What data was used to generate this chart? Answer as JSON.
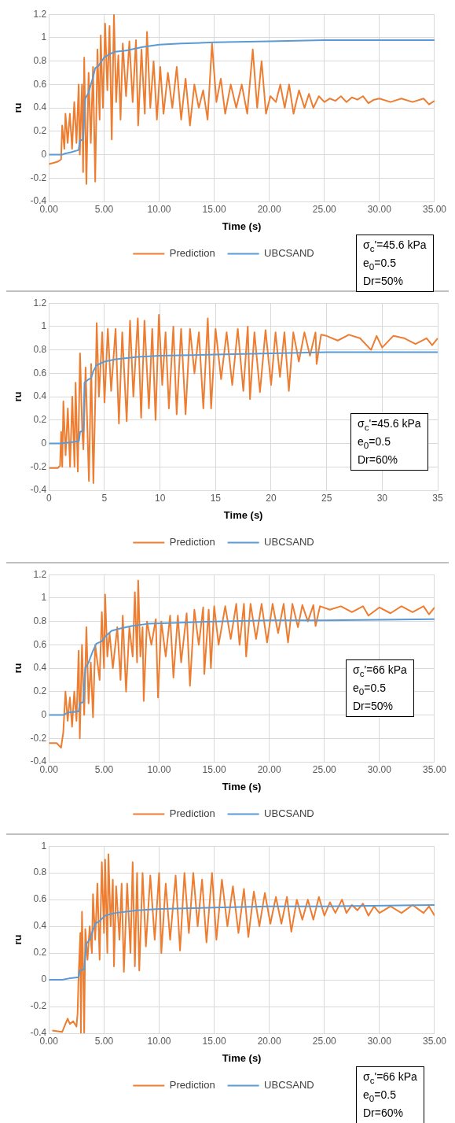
{
  "chart_data": [
    {
      "type": "line",
      "xlabel": "Time (s)",
      "ylabel": "ru",
      "xlim": [
        0,
        35
      ],
      "ylim": [
        -0.4,
        1.2
      ],
      "xticks": [
        {
          "value": 0,
          "label": "0.00"
        },
        {
          "value": 5,
          "label": "5.00"
        },
        {
          "value": 10,
          "label": "10.00"
        },
        {
          "value": 15,
          "label": "15.00"
        },
        {
          "value": 20,
          "label": "20.00"
        },
        {
          "value": 25,
          "label": "25.00"
        },
        {
          "value": 30,
          "label": "30.00"
        },
        {
          "value": 35,
          "label": "35.00"
        }
      ],
      "yticks": [
        -0.4,
        -0.2,
        0,
        0.2,
        0.4,
        0.6,
        0.8,
        1,
        1.2
      ],
      "grid": true,
      "legend": "bottom",
      "line_style": "solid",
      "annotations": [
        "σ$_{c}$'=45.6 kPa",
        "e$_{0}$=0.5",
        "Dr=50%"
      ],
      "series": [
        {
          "name": "Prediction",
          "color": "#ed7d31",
          "x": [
            0,
            0.8,
            1.1,
            1.2,
            1.4,
            1.5,
            1.7,
            1.9,
            2.1,
            2.3,
            2.5,
            2.7,
            2.8,
            3.0,
            3.1,
            3.2,
            3.4,
            3.6,
            3.8,
            4.0,
            4.2,
            4.4,
            4.6,
            4.7,
            4.9,
            5.1,
            5.3,
            5.5,
            5.7,
            5.9,
            6.1,
            6.3,
            6.5,
            6.7,
            7.0,
            7.3,
            7.6,
            7.9,
            8.1,
            8.4,
            8.7,
            8.9,
            9.2,
            9.5,
            9.8,
            10.1,
            10.4,
            10.8,
            11.2,
            11.6,
            12,
            12.4,
            12.8,
            13.2,
            13.6,
            14,
            14.4,
            14.8,
            15.2,
            15.6,
            16,
            16.5,
            17,
            17.5,
            18,
            18.5,
            18.9,
            19.3,
            19.7,
            20.1,
            20.6,
            21,
            21.4,
            21.8,
            22.2,
            22.7,
            23.2,
            23.6,
            24,
            24.5,
            25,
            25.5,
            26,
            26.5,
            27,
            27.5,
            28,
            28.5,
            29,
            29.5,
            30,
            31,
            32,
            33,
            34,
            34.5,
            35
          ],
          "values": [
            -0.08,
            -0.06,
            -0.04,
            0.25,
            0.05,
            0.35,
            0.1,
            0.35,
            0.05,
            0.45,
            0.1,
            0.6,
            0.0,
            0.6,
            -0.15,
            0.83,
            -0.25,
            0.7,
            0.1,
            0.75,
            -0.23,
            0.9,
            0.3,
            1.02,
            0.4,
            1.12,
            0.55,
            1.1,
            0.13,
            1.2,
            0.45,
            0.85,
            0.3,
            0.95,
            0.5,
            0.97,
            0.45,
            0.98,
            0.25,
            0.9,
            0.35,
            1.05,
            0.4,
            0.8,
            0.3,
            0.75,
            0.35,
            0.7,
            0.4,
            0.75,
            0.3,
            0.65,
            0.25,
            0.6,
            0.4,
            0.55,
            0.3,
            0.95,
            0.45,
            0.65,
            0.35,
            0.6,
            0.4,
            0.6,
            0.35,
            0.9,
            0.4,
            0.8,
            0.35,
            0.5,
            0.45,
            0.6,
            0.4,
            0.6,
            0.35,
            0.55,
            0.4,
            0.52,
            0.4,
            0.5,
            0.45,
            0.48,
            0.46,
            0.5,
            0.45,
            0.49,
            0.47,
            0.5,
            0.44,
            0.47,
            0.48,
            0.45,
            0.48,
            0.45,
            0.48,
            0.43,
            0.46
          ]
        },
        {
          "name": "UBCSAND",
          "color": "#5b9bd5",
          "x": [
            0,
            1.2,
            1.5,
            2,
            2.7,
            2.8,
            3.1,
            3.3,
            3.6,
            3.8,
            4,
            4.2,
            4.5,
            5,
            5.5,
            6,
            7,
            8,
            8.5,
            10,
            12,
            15,
            20,
            25,
            35
          ],
          "values": [
            0,
            0,
            0.01,
            0.02,
            0.04,
            0.12,
            0.13,
            0.48,
            0.53,
            0.6,
            0.66,
            0.74,
            0.76,
            0.83,
            0.86,
            0.88,
            0.89,
            0.91,
            0.92,
            0.94,
            0.95,
            0.96,
            0.97,
            0.98,
            0.98
          ]
        }
      ]
    },
    {
      "type": "line",
      "xlabel": "Time (s)",
      "ylabel": "ru",
      "xlim": [
        0,
        35
      ],
      "ylim": [
        -0.4,
        1.2
      ],
      "xticks": [
        0,
        5,
        10,
        15,
        20,
        25,
        30,
        35
      ],
      "yticks": [
        -0.4,
        -0.2,
        0,
        0.2,
        0.4,
        0.6,
        0.8,
        1,
        1.2
      ],
      "grid": true,
      "legend": "bottom",
      "line_style": "solid",
      "annotations": [
        "σ$_{c}$'=45.6 kPa",
        "e$_{0}$=0.5",
        "Dr=60%"
      ],
      "series": [
        {
          "name": "Prediction",
          "color": "#ed7d31",
          "x": [
            0,
            0.8,
            1.0,
            1.1,
            1.2,
            1.3,
            1.5,
            1.7,
            1.9,
            2.1,
            2.3,
            2.4,
            2.6,
            2.8,
            3.0,
            3.1,
            3.3,
            3.6,
            3.8,
            4.0,
            4.2,
            4.3,
            4.5,
            4.8,
            5.0,
            5.3,
            5.6,
            6.0,
            6.3,
            6.6,
            7.0,
            7.3,
            7.6,
            8.0,
            8.3,
            8.6,
            9.0,
            9.3,
            9.6,
            9.9,
            10.2,
            10.5,
            10.8,
            11.2,
            11.5,
            11.9,
            12.3,
            12.7,
            13.1,
            13.5,
            13.9,
            14.3,
            14.6,
            15,
            15.5,
            16,
            16.5,
            17,
            17.5,
            17.9,
            18.1,
            18.5,
            19,
            19.5,
            20,
            20.4,
            20.8,
            21.2,
            21.6,
            22,
            22.5,
            23,
            23.5,
            24,
            24.1,
            24.5,
            25,
            26,
            27,
            28,
            29,
            29.5,
            30,
            31,
            32,
            33,
            34,
            34.5,
            35
          ],
          "values": [
            -0.21,
            -0.21,
            -0.19,
            0.1,
            -0.2,
            0.36,
            -0.1,
            0.3,
            -0.2,
            0.4,
            -0.2,
            0.52,
            -0.24,
            0.77,
            0.1,
            -0.05,
            0.65,
            -0.32,
            0.68,
            -0.34,
            0.5,
            1.03,
            0.4,
            0.95,
            0.35,
            0.98,
            0.45,
            0.98,
            0.17,
            0.95,
            0.19,
            1.05,
            0.4,
            1.07,
            0.22,
            1.05,
            0.3,
            0.98,
            0.2,
            1.1,
            0.5,
            0.95,
            0.3,
            1.0,
            0.25,
            0.98,
            0.25,
            0.98,
            0.6,
            0.95,
            0.3,
            1.07,
            0.3,
            0.98,
            0.55,
            0.95,
            0.5,
            0.98,
            0.45,
            1.0,
            0.38,
            0.95,
            0.44,
            0.97,
            0.5,
            0.95,
            0.57,
            0.95,
            0.45,
            0.95,
            0.7,
            0.95,
            0.75,
            0.95,
            0.68,
            0.93,
            0.92,
            0.88,
            0.93,
            0.9,
            0.8,
            0.92,
            0.82,
            0.92,
            0.9,
            0.85,
            0.9,
            0.84,
            0.9
          ]
        },
        {
          "name": "UBCSAND",
          "color": "#5b9bd5",
          "x": [
            0,
            1,
            2,
            2.7,
            2.8,
            3.1,
            3.2,
            3.6,
            3.8,
            4.0,
            4.3,
            5,
            6,
            7,
            8,
            10,
            15,
            20,
            25,
            35
          ],
          "values": [
            0,
            0,
            0.01,
            0.02,
            0.1,
            0.11,
            0.52,
            0.55,
            0.56,
            0.62,
            0.67,
            0.7,
            0.72,
            0.73,
            0.74,
            0.75,
            0.76,
            0.77,
            0.78,
            0.78
          ]
        }
      ]
    },
    {
      "type": "line",
      "xlabel": "Time (s)",
      "ylabel": "ru",
      "xlim": [
        0,
        35
      ],
      "ylim": [
        -0.4,
        1.2
      ],
      "xticks": [
        {
          "value": 0,
          "label": "0.00"
        },
        {
          "value": 5,
          "label": "5.00"
        },
        {
          "value": 10,
          "label": "10.00"
        },
        {
          "value": 15,
          "label": "15.00"
        },
        {
          "value": 20,
          "label": "20.00"
        },
        {
          "value": 25,
          "label": "25.00"
        },
        {
          "value": 30,
          "label": "30.00"
        },
        {
          "value": 35,
          "label": "35.00"
        }
      ],
      "yticks": [
        -0.4,
        -0.2,
        0,
        0.2,
        0.4,
        0.6,
        0.8,
        1,
        1.2
      ],
      "grid": true,
      "legend": "bottom",
      "line_style": "solid",
      "annotations": [
        "σ$_{c}$'=66 kPa",
        "e$_{0}$=0.5",
        "Dr=50%"
      ],
      "series": [
        {
          "name": "Prediction",
          "color": "#ed7d31",
          "x": [
            0,
            0.7,
            1.1,
            1.3,
            1.5,
            1.7,
            1.9,
            2.1,
            2.3,
            2.5,
            2.7,
            2.8,
            3.0,
            3.2,
            3.4,
            3.6,
            3.8,
            4.0,
            4.2,
            4.6,
            4.8,
            5.0,
            5.1,
            5.3,
            5.5,
            5.8,
            6.2,
            6.5,
            6.7,
            7.0,
            7.3,
            7.6,
            7.8,
            8.0,
            8.1,
            8.3,
            8.5,
            8.6,
            8.9,
            9.3,
            9.7,
            9.9,
            10.2,
            10.6,
            11,
            11.3,
            11.7,
            12.0,
            12.5,
            12.8,
            13.2,
            13.6,
            14.0,
            14.1,
            14.5,
            14.7,
            15,
            15.4,
            16,
            16.5,
            17,
            17.3,
            17.7,
            17.9,
            18.3,
            18.8,
            19.3,
            19.8,
            20.3,
            20.8,
            21.3,
            21.7,
            22.1,
            22.6,
            23,
            23.5,
            24,
            24.2,
            24.6,
            25.5,
            26.5,
            27.5,
            28.5,
            29,
            30,
            31,
            32,
            33,
            34,
            34.5,
            35
          ],
          "values": [
            -0.24,
            -0.24,
            -0.28,
            -0.15,
            0.2,
            -0.05,
            0.15,
            -0.1,
            0.2,
            -0.05,
            0.55,
            -0.2,
            0.6,
            0.0,
            0.75,
            0.1,
            0.45,
            -0.02,
            0.6,
            0.3,
            0.88,
            0.4,
            1.03,
            0.5,
            0.7,
            0.4,
            0.75,
            0.3,
            0.85,
            0.2,
            0.75,
            0.5,
            1.05,
            0.45,
            1.15,
            0.5,
            0.75,
            0.12,
            0.8,
            0.6,
            0.82,
            0.15,
            0.8,
            0.5,
            0.85,
            0.32,
            0.85,
            0.45,
            0.87,
            0.25,
            0.9,
            0.6,
            0.92,
            0.35,
            0.9,
            0.4,
            0.93,
            0.6,
            0.93,
            0.65,
            0.95,
            0.6,
            0.95,
            0.5,
            0.95,
            0.65,
            0.95,
            0.62,
            0.95,
            0.7,
            0.95,
            0.62,
            0.95,
            0.75,
            0.94,
            0.8,
            0.94,
            0.76,
            0.93,
            0.9,
            0.93,
            0.88,
            0.93,
            0.85,
            0.92,
            0.87,
            0.93,
            0.88,
            0.93,
            0.86,
            0.92
          ]
        },
        {
          "name": "UBCSAND",
          "color": "#5b9bd5",
          "x": [
            0,
            1.3,
            1.7,
            2.7,
            2.8,
            3.1,
            3.3,
            3.6,
            3.8,
            4.0,
            4.3,
            4.8,
            5.2,
            5.7,
            6.5,
            7.5,
            9,
            12,
            15,
            20,
            25,
            35
          ],
          "values": [
            0,
            0,
            0.02,
            0.03,
            0.1,
            0.11,
            0.4,
            0.45,
            0.5,
            0.55,
            0.61,
            0.63,
            0.68,
            0.72,
            0.74,
            0.76,
            0.78,
            0.79,
            0.8,
            0.81,
            0.81,
            0.82
          ]
        }
      ]
    },
    {
      "type": "line",
      "xlabel": "Time (s)",
      "ylabel": "ru",
      "xlim": [
        0,
        35
      ],
      "ylim": [
        -0.4,
        1
      ],
      "xticks": [
        {
          "value": 0,
          "label": "0.00"
        },
        {
          "value": 5,
          "label": "5.00"
        },
        {
          "value": 10,
          "label": "10.00"
        },
        {
          "value": 15,
          "label": "15.00"
        },
        {
          "value": 20,
          "label": "20.00"
        },
        {
          "value": 25,
          "label": "25.00"
        },
        {
          "value": 30,
          "label": "30.00"
        },
        {
          "value": 35,
          "label": "35.00"
        }
      ],
      "yticks": [
        -0.4,
        -0.2,
        0,
        0.2,
        0.4,
        0.6,
        0.8,
        1
      ],
      "grid": true,
      "legend": "bottom",
      "line_style": "solid",
      "annotations": [
        "σ$_{c}$'=66 kPa",
        "e$_{0}$=0.5",
        "Dr=60%"
      ],
      "series": [
        {
          "name": "Prediction",
          "color": "#ed7d31",
          "x": [
            0.3,
            1.2,
            1.5,
            1.7,
            1.9,
            2.2,
            2.5,
            2.6,
            2.7,
            2.85,
            2.9,
            3.0,
            3.1,
            3.2,
            3.3,
            3.5,
            3.7,
            3.9,
            4.0,
            4.2,
            4.4,
            4.6,
            4.8,
            5.0,
            5.1,
            5.3,
            5.4,
            5.6,
            5.8,
            5.9,
            6.1,
            6.4,
            6.6,
            6.8,
            7.1,
            7.4,
            7.6,
            7.8,
            8.0,
            8.2,
            8.5,
            8.8,
            9.2,
            9.6,
            10.0,
            10.2,
            10.6,
            11.0,
            11.5,
            11.9,
            12.3,
            12.7,
            13.1,
            13.5,
            13.9,
            14.3,
            14.8,
            15.2,
            15.7,
            16.2,
            16.7,
            17.2,
            17.7,
            18.1,
            18.6,
            19.1,
            19.6,
            20.1,
            20.6,
            21.1,
            21.6,
            22,
            22.5,
            23,
            23.5,
            24,
            24.5,
            25,
            25.5,
            26,
            26.6,
            27,
            27.5,
            28,
            28.5,
            29,
            29.5,
            30,
            31,
            32,
            33,
            34,
            34.5,
            35
          ],
          "values": [
            -0.38,
            -0.39,
            -0.33,
            -0.29,
            -0.33,
            -0.31,
            -0.35,
            -0.25,
            0.05,
            0.35,
            -0.4,
            0.51,
            0.1,
            -0.4,
            0.38,
            0.15,
            0.4,
            0.2,
            0.64,
            0.3,
            0.72,
            0.15,
            0.88,
            0.35,
            0.9,
            0.2,
            0.94,
            0.4,
            0.75,
            0.1,
            0.7,
            0.3,
            0.72,
            0.06,
            0.72,
            0.2,
            0.88,
            0.1,
            0.8,
            0.07,
            0.8,
            0.25,
            0.78,
            0.3,
            0.8,
            0.2,
            0.72,
            0.3,
            0.78,
            0.22,
            0.8,
            0.35,
            0.8,
            0.4,
            0.75,
            0.28,
            0.8,
            0.3,
            0.75,
            0.4,
            0.7,
            0.35,
            0.68,
            0.32,
            0.66,
            0.4,
            0.65,
            0.42,
            0.62,
            0.42,
            0.62,
            0.36,
            0.6,
            0.45,
            0.6,
            0.45,
            0.62,
            0.48,
            0.58,
            0.5,
            0.6,
            0.5,
            0.56,
            0.52,
            0.57,
            0.48,
            0.55,
            0.5,
            0.55,
            0.5,
            0.56,
            0.5,
            0.55,
            0.48
          ]
        },
        {
          "name": "UBCSAND",
          "color": "#5b9bd5",
          "x": [
            0,
            1.2,
            1.8,
            2.7,
            2.8,
            3.2,
            3.4,
            3.7,
            3.9,
            4.2,
            4.6,
            5.1,
            6,
            7,
            8,
            10,
            15,
            20,
            25,
            35
          ],
          "values": [
            0,
            0,
            0.01,
            0.02,
            0.07,
            0.08,
            0.27,
            0.3,
            0.35,
            0.42,
            0.44,
            0.48,
            0.5,
            0.51,
            0.52,
            0.53,
            0.54,
            0.55,
            0.55,
            0.56
          ]
        }
      ]
    }
  ]
}
